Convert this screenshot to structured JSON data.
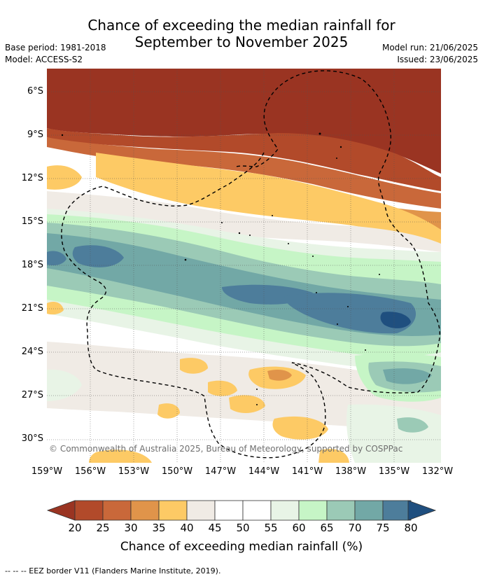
{
  "header": {
    "title_line1": "Chance of exceeding the median rainfall for",
    "title_line2": "September to November 2025",
    "base_period": "Base period: 1981-2018",
    "model": "Model: ACCESS-S2",
    "model_run": "Model run: 21/06/2025",
    "issued": "Issued: 23/06/2025"
  },
  "map": {
    "lat_labels": [
      "6°S",
      "9°S",
      "12°S",
      "15°S",
      "18°S",
      "21°S",
      "24°S",
      "27°S",
      "30°S"
    ],
    "lon_labels": [
      "159°W",
      "156°W",
      "153°W",
      "150°W",
      "147°W",
      "144°W",
      "141°W",
      "138°W",
      "135°W",
      "132°W"
    ],
    "copyright": "© Commonwealth of Australia 2025, Bureau of Meteorology, supported by COSPPac",
    "palette": {
      "c20": "#9a3422",
      "c25": "#b24a2a",
      "c30": "#c9683a",
      "c35": "#e0944a",
      "c40": "#fdca65",
      "c45": "#f0ebe5",
      "c55": "#ffffff",
      "c60": "#e8f4e6",
      "c65": "#c6f5c6",
      "c70": "#9bcab6",
      "c75": "#72a8a6",
      "c80": "#4d7d9b",
      "c85": "#1f4f7f"
    }
  },
  "legend": {
    "ticks": [
      "20",
      "25",
      "30",
      "35",
      "40",
      "45",
      "50",
      "55",
      "60",
      "65",
      "70",
      "75",
      "80"
    ],
    "title": "Chance of exceeding median rainfall (%)",
    "colors": [
      "#b24a2a",
      "#c9683a",
      "#e0944a",
      "#fdca65",
      "#f0ebe5",
      "#ffffff",
      "#ffffff",
      "#e8f4e6",
      "#c6f5c6",
      "#9bcab6",
      "#72a8a6",
      "#4d7d9b"
    ],
    "low_extension_color": "#9a3422",
    "high_extension_color": "#1f4f7f"
  },
  "footnote": "--  --  -- EEZ border V11 (Flanders Marine Institute, 2019)."
}
